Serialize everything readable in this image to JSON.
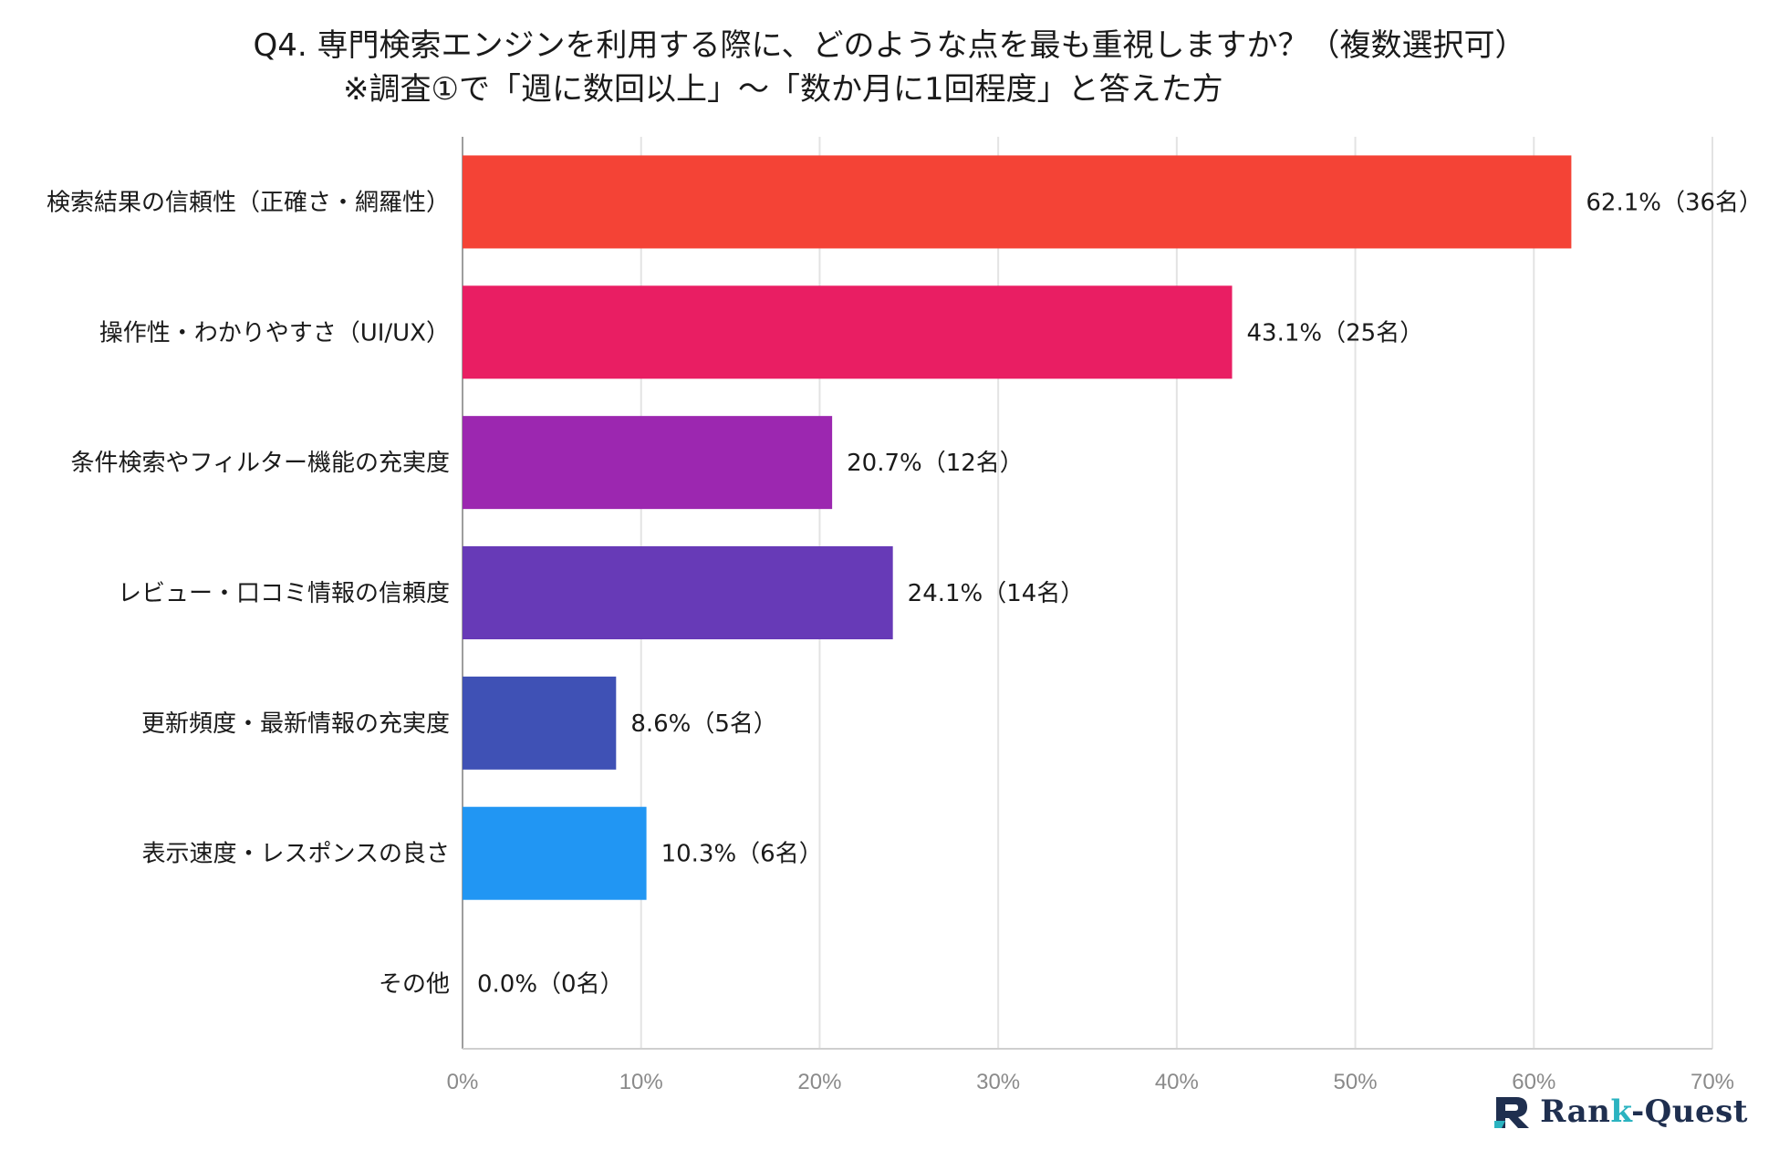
{
  "title": {
    "line1": "Q4. 専門検索エンジンを利用する際に、どのような点を最も重視しますか？（複数選択可）",
    "line2": "※調査①で「週に数回以上」〜「数か月に1回程度」と答えた方"
  },
  "chart_data": {
    "type": "bar",
    "orientation": "horizontal",
    "title": "Q4. 専門検索エンジンを利用する際に、どのような点を最も重視しますか？（複数選択可）",
    "subtitle": "※調査①で「週に数回以上」〜「数か月に1回程度」と答えた方",
    "categories": [
      "検索結果の信頼性（正確さ・網羅性）",
      "操作性・わかりやすさ（UI/UX）",
      "条件検索やフィルター機能の充実度",
      "レビュー・口コミ情報の信頼度",
      "更新頻度・最新情報の充実度",
      "表示速度・レスポンスの良さ",
      "その他"
    ],
    "values": [
      62.1,
      43.1,
      20.7,
      24.1,
      8.6,
      10.3,
      0.0
    ],
    "counts": [
      36,
      25,
      12,
      14,
      5,
      6,
      0
    ],
    "data_labels": [
      "62.1%（36名）",
      "43.1%（25名）",
      "20.7%（12名）",
      "24.1%（14名）",
      "8.6%（5名）",
      "10.3%（6名）",
      "0.0%（0名）"
    ],
    "colors": [
      "#f44336",
      "#e91e63",
      "#9c27b0",
      "#673ab7",
      "#3f51b5",
      "#2196f3",
      "#03a9f4"
    ],
    "xlim": [
      0,
      70
    ],
    "xticks": [
      0,
      10,
      20,
      30,
      40,
      50,
      60,
      70
    ],
    "xtick_labels": [
      "0%",
      "10%",
      "20%",
      "30%",
      "40%",
      "50%",
      "60%",
      "70%"
    ],
    "grid": "vertical",
    "xlabel": "",
    "ylabel": ""
  },
  "logo": {
    "prefix": "Ran",
    "k": "k",
    "suffix": "-Quest"
  }
}
